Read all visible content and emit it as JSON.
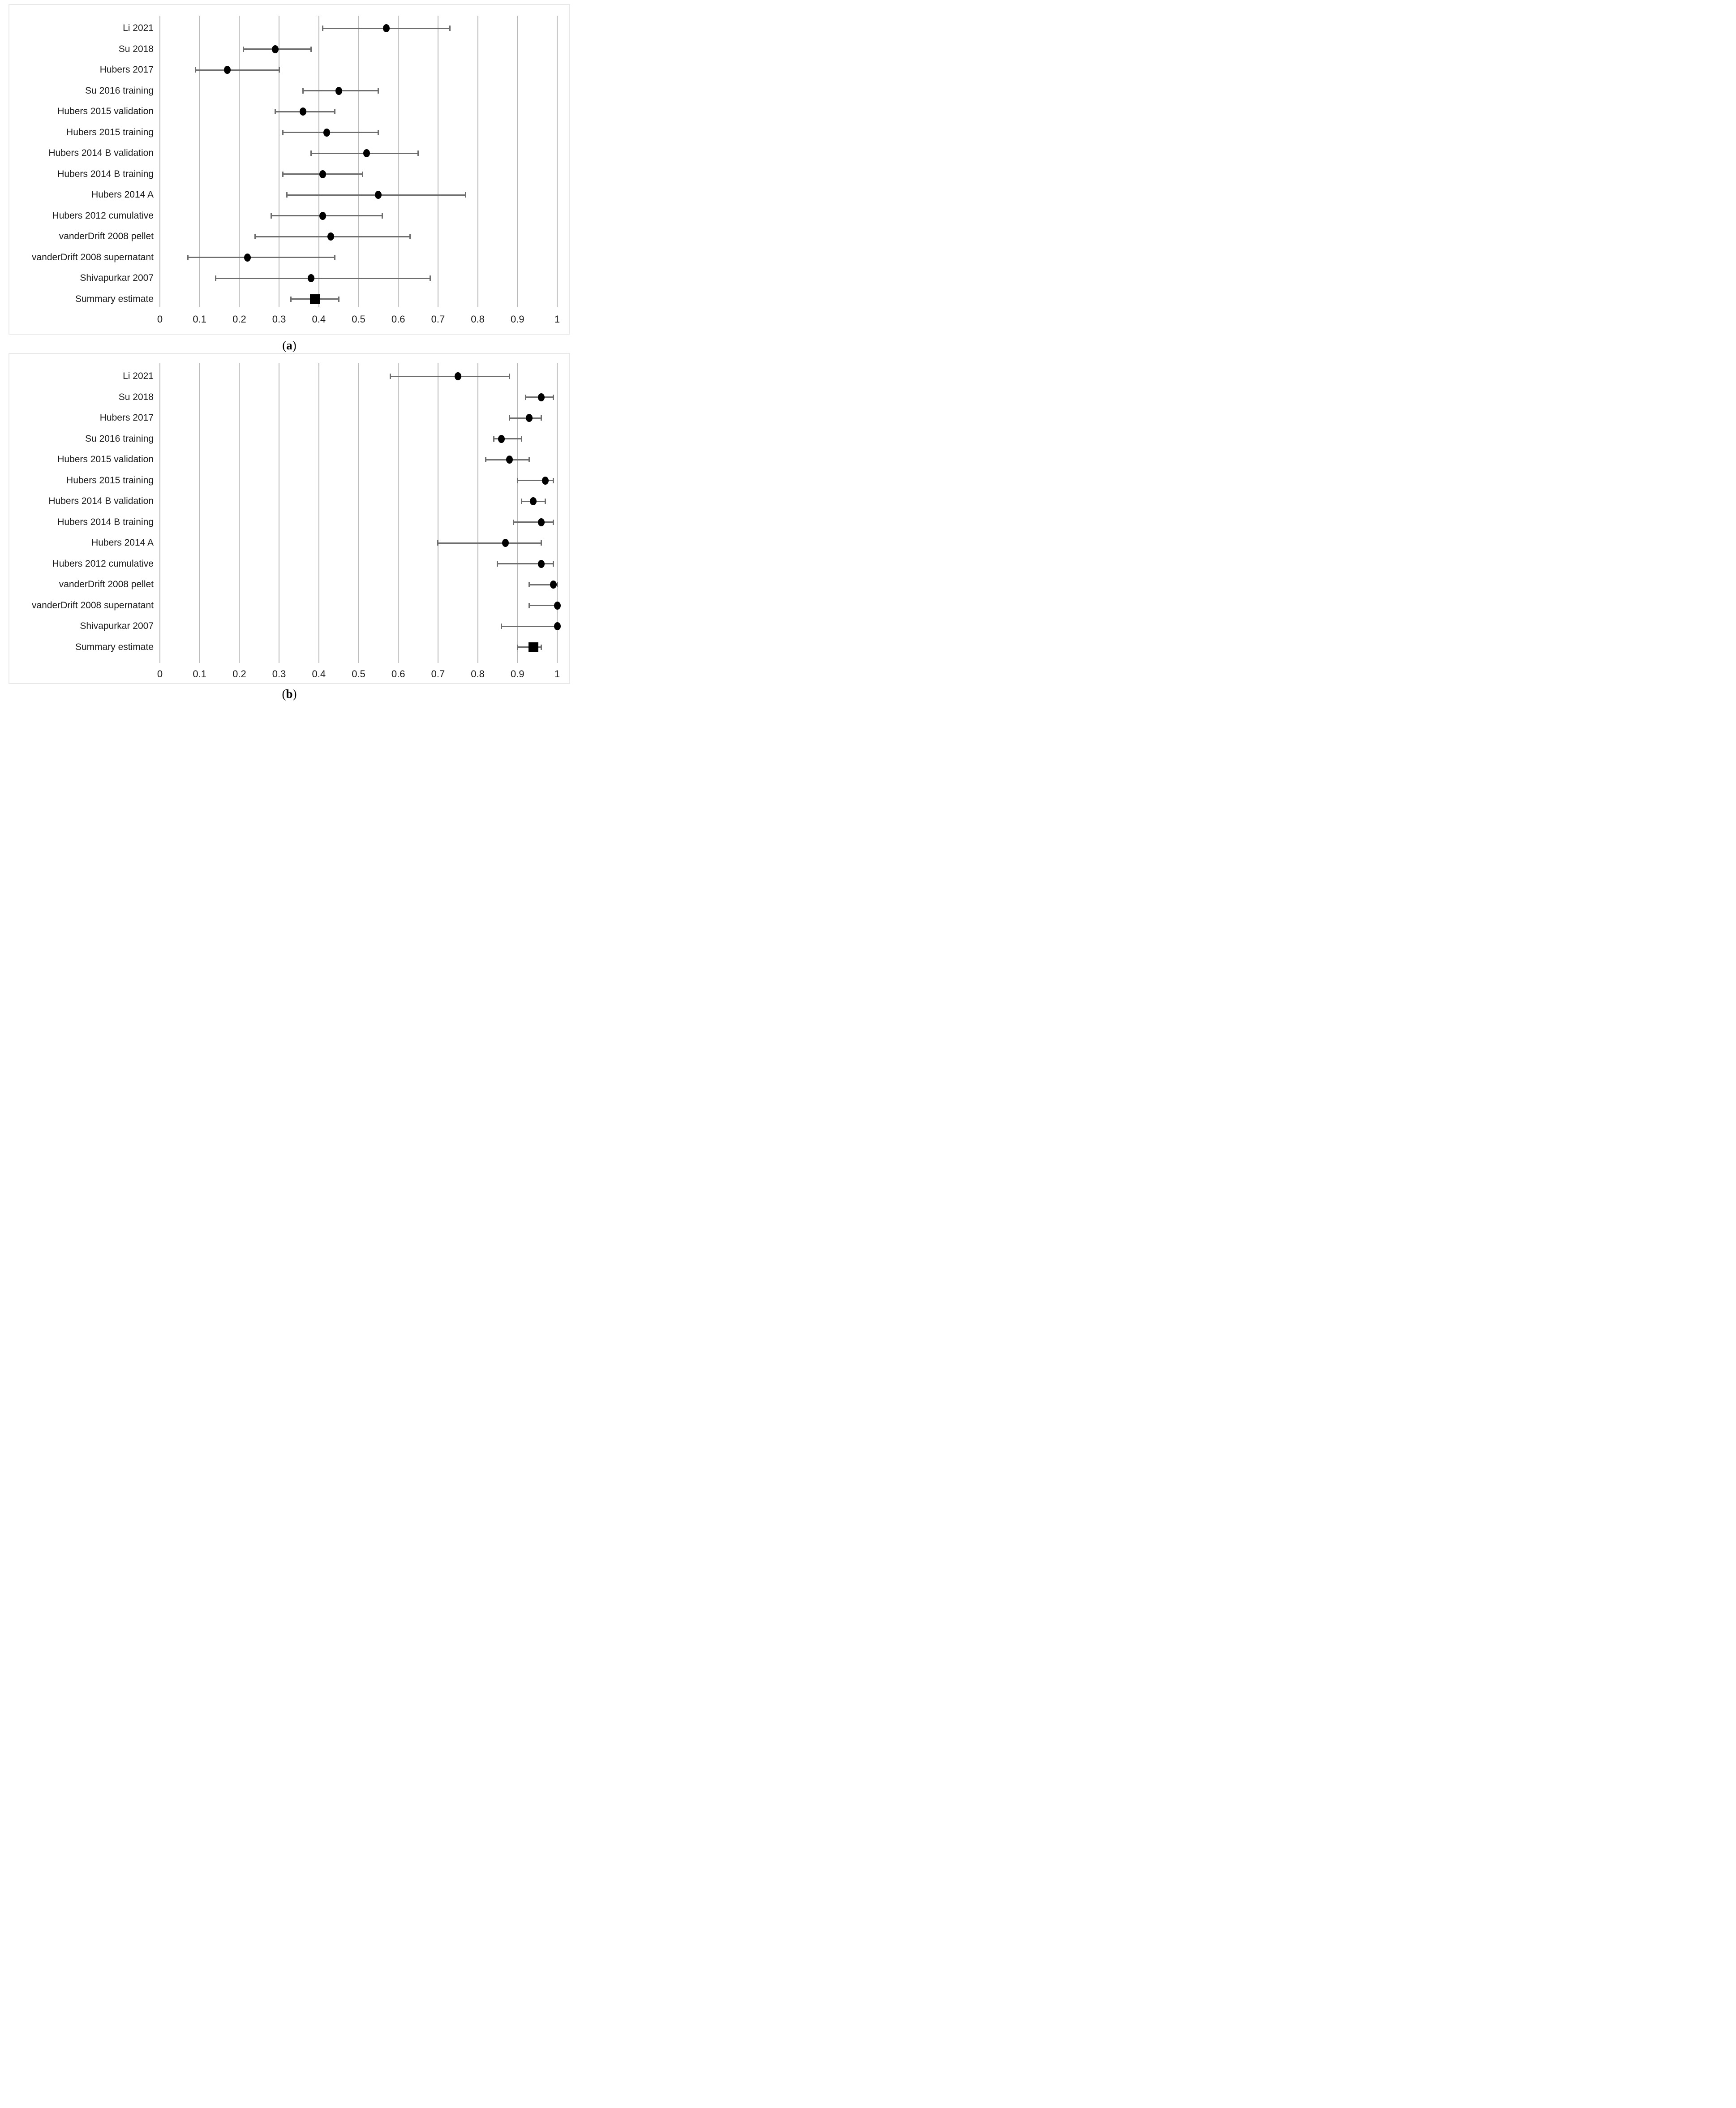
{
  "colors": {
    "point": "#000000",
    "summary_square": "#000000",
    "error_bar": "#6e6e6e",
    "gridline": "#b9b9b9",
    "panel_border": "#e9e9e9",
    "text": "#1a1a1a"
  },
  "axis": {
    "tick_values": [
      0,
      0.1,
      0.2,
      0.3,
      0.4,
      0.5,
      0.6,
      0.7,
      0.8,
      0.9,
      1
    ],
    "tick_labels": [
      "0",
      "0.1",
      "0.2",
      "0.3",
      "0.4",
      "0.5",
      "0.6",
      "0.7",
      "0.8",
      "0.9",
      "1"
    ]
  },
  "chart_data": [
    {
      "type": "scatter",
      "subtype": "forest-plot",
      "panel": "a",
      "caption_letter": "a",
      "xlim": [
        0,
        1
      ],
      "grid": "vertical-on",
      "legend": "none",
      "studies": [
        {
          "label": "Li 2021",
          "estimate": 0.57,
          "ci_low": 0.41,
          "ci_high": 0.73,
          "marker": "circle"
        },
        {
          "label": "Su 2018",
          "estimate": 0.29,
          "ci_low": 0.21,
          "ci_high": 0.38,
          "marker": "circle"
        },
        {
          "label": "Hubers 2017",
          "estimate": 0.17,
          "ci_low": 0.09,
          "ci_high": 0.3,
          "marker": "circle"
        },
        {
          "label": "Su 2016 training",
          "estimate": 0.45,
          "ci_low": 0.36,
          "ci_high": 0.55,
          "marker": "circle"
        },
        {
          "label": "Hubers 2015 validation",
          "estimate": 0.36,
          "ci_low": 0.29,
          "ci_high": 0.44,
          "marker": "circle"
        },
        {
          "label": "Hubers 2015 training",
          "estimate": 0.42,
          "ci_low": 0.31,
          "ci_high": 0.55,
          "marker": "circle"
        },
        {
          "label": "Hubers 2014 B validation",
          "estimate": 0.52,
          "ci_low": 0.38,
          "ci_high": 0.65,
          "marker": "circle"
        },
        {
          "label": "Hubers 2014 B training",
          "estimate": 0.41,
          "ci_low": 0.31,
          "ci_high": 0.51,
          "marker": "circle"
        },
        {
          "label": "Hubers 2014 A",
          "estimate": 0.55,
          "ci_low": 0.32,
          "ci_high": 0.77,
          "marker": "circle"
        },
        {
          "label": "Hubers 2012 cumulative",
          "estimate": 0.41,
          "ci_low": 0.28,
          "ci_high": 0.56,
          "marker": "circle"
        },
        {
          "label": "vanderDrift 2008 pellet",
          "estimate": 0.43,
          "ci_low": 0.24,
          "ci_high": 0.63,
          "marker": "circle"
        },
        {
          "label": "vanderDrift 2008 supernatant",
          "estimate": 0.22,
          "ci_low": 0.07,
          "ci_high": 0.44,
          "marker": "circle"
        },
        {
          "label": "Shivapurkar 2007",
          "estimate": 0.38,
          "ci_low": 0.14,
          "ci_high": 0.68,
          "marker": "circle"
        },
        {
          "label": "Summary estimate",
          "estimate": 0.39,
          "ci_low": 0.33,
          "ci_high": 0.45,
          "marker": "square"
        }
      ]
    },
    {
      "type": "scatter",
      "subtype": "forest-plot",
      "panel": "b",
      "caption_letter": "b",
      "xlim": [
        0,
        1
      ],
      "grid": "vertical-on",
      "legend": "none",
      "studies": [
        {
          "label": "Li 2021",
          "estimate": 0.75,
          "ci_low": 0.58,
          "ci_high": 0.88,
          "marker": "circle"
        },
        {
          "label": "Su 2018",
          "estimate": 0.96,
          "ci_low": 0.92,
          "ci_high": 0.99,
          "marker": "circle"
        },
        {
          "label": "Hubers 2017",
          "estimate": 0.93,
          "ci_low": 0.88,
          "ci_high": 0.96,
          "marker": "circle"
        },
        {
          "label": "Su 2016 training",
          "estimate": 0.86,
          "ci_low": 0.84,
          "ci_high": 0.91,
          "marker": "circle"
        },
        {
          "label": "Hubers 2015 validation",
          "estimate": 0.88,
          "ci_low": 0.82,
          "ci_high": 0.93,
          "marker": "circle"
        },
        {
          "label": "Hubers 2015 training",
          "estimate": 0.97,
          "ci_low": 0.9,
          "ci_high": 0.99,
          "marker": "circle"
        },
        {
          "label": "Hubers 2014 B validation",
          "estimate": 0.94,
          "ci_low": 0.91,
          "ci_high": 0.97,
          "marker": "circle"
        },
        {
          "label": "Hubers 2014 B training",
          "estimate": 0.96,
          "ci_low": 0.89,
          "ci_high": 0.99,
          "marker": "circle"
        },
        {
          "label": "Hubers 2014 A",
          "estimate": 0.87,
          "ci_low": 0.7,
          "ci_high": 0.96,
          "marker": "circle"
        },
        {
          "label": "Hubers 2012 cumulative",
          "estimate": 0.96,
          "ci_low": 0.85,
          "ci_high": 0.99,
          "marker": "circle"
        },
        {
          "label": "vanderDrift 2008 pellet",
          "estimate": 0.99,
          "ci_low": 0.93,
          "ci_high": 1.0,
          "marker": "circle"
        },
        {
          "label": "vanderDrift 2008 supernatant",
          "estimate": 1.0,
          "ci_low": 0.93,
          "ci_high": 1.0,
          "marker": "circle"
        },
        {
          "label": "Shivapurkar 2007",
          "estimate": 1.0,
          "ci_low": 0.86,
          "ci_high": 1.0,
          "marker": "circle"
        },
        {
          "label": "Summary estimate",
          "estimate": 0.94,
          "ci_low": 0.9,
          "ci_high": 0.96,
          "marker": "square"
        }
      ]
    }
  ]
}
